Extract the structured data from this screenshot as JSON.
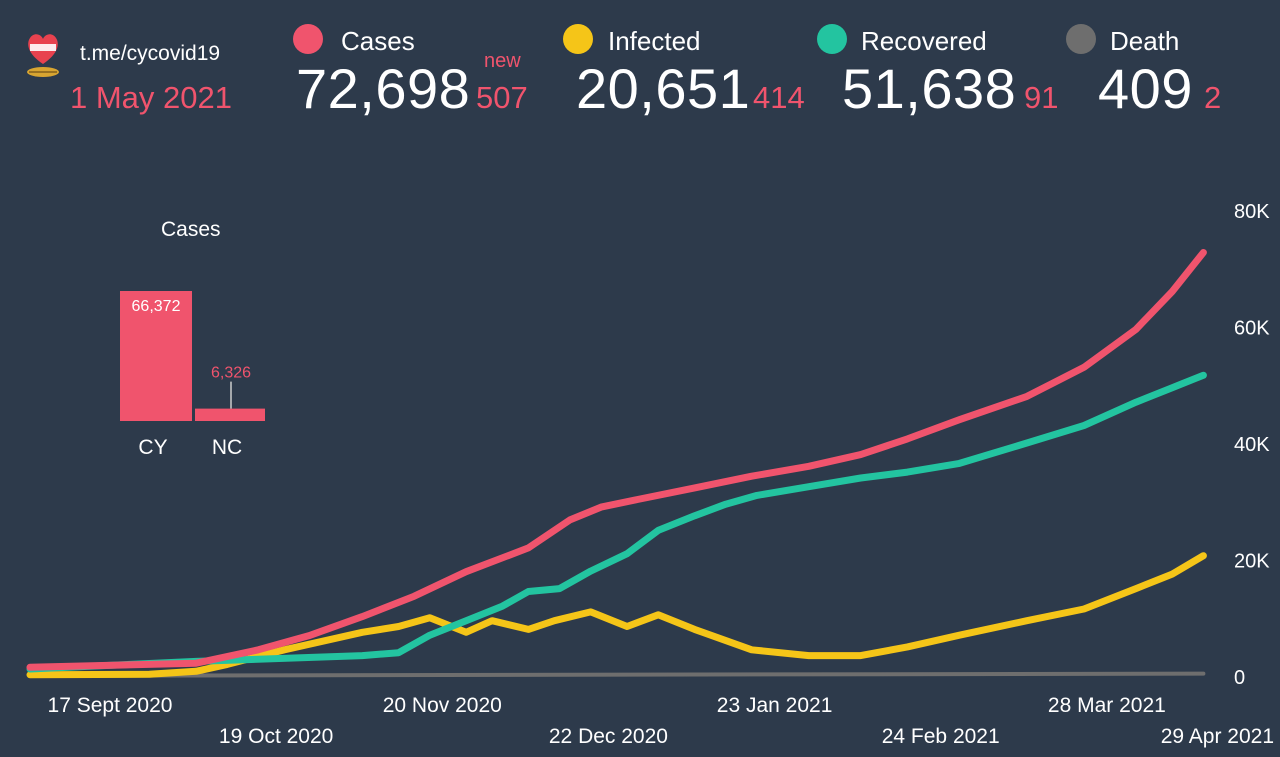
{
  "header": {
    "channel": "t.me/cycovid19",
    "date": "1 May 2021",
    "new_label": "new"
  },
  "stats": [
    {
      "label": "Cases",
      "value": "72,698",
      "delta": "507",
      "color": "#f0546d"
    },
    {
      "label": "Infected",
      "value": "20,651",
      "delta": "414",
      "color": "#f5c518"
    },
    {
      "label": "Recovered",
      "value": "51,638",
      "delta": "91",
      "color": "#23c4a0"
    },
    {
      "label": "Death",
      "value": "409",
      "delta": "2",
      "color": "#6e6e6e"
    }
  ],
  "chart_data": [
    {
      "type": "line",
      "y_ticks": [
        "0",
        "20K",
        "40K",
        "60K",
        "80K"
      ],
      "ylim": [
        0,
        80000
      ],
      "x_ticks_row1": [
        "17 Sept 2020",
        "20 Nov 2020",
        "23 Jan 2021",
        "28 Mar 2021"
      ],
      "x_ticks_row2": [
        "19 Oct 2020",
        "22 Dec 2020",
        "24 Feb 2021",
        "29 Apr 2021"
      ],
      "x_tick_dates": [
        "2020-09-17",
        "2020-10-19",
        "2020-11-20",
        "2020-12-22",
        "2021-01-23",
        "2021-02-24",
        "2021-03-28",
        "2021-04-29"
      ],
      "grid": false,
      "series": [
        {
          "name": "Cases",
          "color": "#f0546d",
          "x": [
            "2020-09-17",
            "2020-10-19",
            "2020-10-31",
            "2020-11-10",
            "2020-11-20",
            "2020-11-30",
            "2020-12-10",
            "2020-12-22",
            "2020-12-30",
            "2021-01-05",
            "2021-01-12",
            "2021-01-23",
            "2021-02-03",
            "2021-02-14",
            "2021-02-24",
            "2021-03-05",
            "2021-03-15",
            "2021-03-28",
            "2021-04-08",
            "2021-04-18",
            "2021-04-25",
            "2021-05-01"
          ],
          "y": [
            1500,
            2200,
            4500,
            7000,
            10200,
            13700,
            17900,
            22000,
            26800,
            29000,
            30300,
            32300,
            34300,
            36000,
            38000,
            40700,
            44000,
            48000,
            53000,
            59500,
            66000,
            72698
          ]
        },
        {
          "name": "Infected",
          "color": "#f5c518",
          "x": [
            "2020-09-17",
            "2020-10-10",
            "2020-10-19",
            "2020-10-25",
            "2020-11-05",
            "2020-11-20",
            "2020-11-27",
            "2020-12-03",
            "2020-12-10",
            "2020-12-15",
            "2020-12-22",
            "2020-12-27",
            "2021-01-03",
            "2021-01-10",
            "2021-01-16",
            "2021-01-23",
            "2021-02-03",
            "2021-02-14",
            "2021-02-24",
            "2021-03-05",
            "2021-03-15",
            "2021-03-28",
            "2021-04-08",
            "2021-04-18",
            "2021-04-25",
            "2021-05-01"
          ],
          "y": [
            200,
            300,
            800,
            2000,
            4500,
            7500,
            8500,
            10000,
            7500,
            9500,
            8000,
            9500,
            11000,
            8500,
            10500,
            8000,
            4500,
            3500,
            3500,
            5000,
            7000,
            9500,
            11500,
            15000,
            17500,
            20651
          ]
        },
        {
          "name": "Recovered",
          "color": "#23c4a0",
          "x": [
            "2020-09-17",
            "2020-10-19",
            "2020-11-20",
            "2020-11-27",
            "2020-12-03",
            "2020-12-10",
            "2020-12-17",
            "2020-12-22",
            "2020-12-28",
            "2021-01-03",
            "2021-01-10",
            "2021-01-16",
            "2021-01-23",
            "2021-01-29",
            "2021-02-04",
            "2021-02-14",
            "2021-02-24",
            "2021-03-05",
            "2021-03-15",
            "2021-03-28",
            "2021-04-08",
            "2021-04-18",
            "2021-04-25",
            "2021-05-01"
          ],
          "y": [
            1200,
            2500,
            3500,
            4000,
            7000,
            9500,
            12000,
            14500,
            15000,
            18000,
            21000,
            25000,
            27500,
            29500,
            31000,
            32500,
            34000,
            35000,
            36500,
            40000,
            43000,
            47000,
            49500,
            51638
          ]
        },
        {
          "name": "Death",
          "color": "#6e6e6e",
          "x": [
            "2020-09-17",
            "2021-05-01"
          ],
          "y": [
            30,
            409
          ]
        }
      ]
    },
    {
      "type": "bar",
      "title": "Cases",
      "categories": [
        "CY",
        "NC"
      ],
      "values": [
        66372,
        6326
      ],
      "value_labels": [
        "66,372",
        "6,326"
      ],
      "colors": [
        "#f0546d",
        "#f0546d"
      ]
    }
  ]
}
